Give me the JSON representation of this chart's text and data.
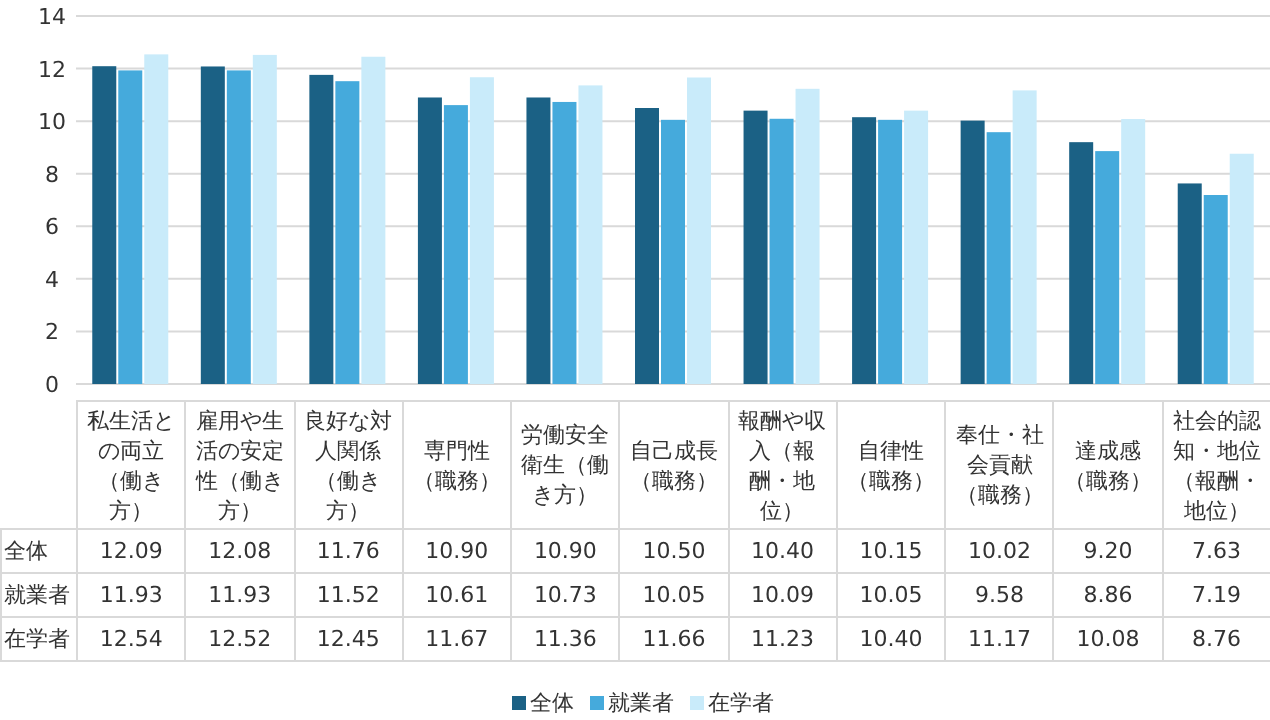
{
  "chart_data": {
    "type": "bar",
    "categories": [
      "私生活との両立（働き方）",
      "雇用や生活の安定性（働き方）",
      "良好な対人関係（働き方）",
      "専門性（職務）",
      "労働安全衛生（働き方）",
      "自己成長（職務）",
      "報酬や収入（報酬・地位）",
      "自律性（職務）",
      "奉仕・社会貢献（職務）",
      "達成感（職務）",
      "社会的認知・地位（報酬・地位）"
    ],
    "series": [
      {
        "name": "全体",
        "color": "#1b6185",
        "values": [
          12.09,
          12.08,
          11.76,
          10.9,
          10.9,
          10.5,
          10.4,
          10.15,
          10.02,
          9.2,
          7.63
        ],
        "value_labels": [
          "12.09",
          "12.08",
          "11.76",
          "10.90",
          "10.90",
          "10.50",
          "10.40",
          "10.15",
          "10.02",
          "9.20",
          "7.63"
        ]
      },
      {
        "name": "就業者",
        "color": "#45aadc",
        "values": [
          11.93,
          11.93,
          11.52,
          10.61,
          10.73,
          10.05,
          10.09,
          10.05,
          9.58,
          8.86,
          7.19
        ],
        "value_labels": [
          "11.93",
          "11.93",
          "11.52",
          "10.61",
          "10.73",
          "10.05",
          "10.09",
          "10.05",
          "9.58",
          "8.86",
          "7.19"
        ]
      },
      {
        "name": "在学者",
        "color": "#c9ebfa",
        "values": [
          12.54,
          12.52,
          12.45,
          11.67,
          11.36,
          11.66,
          11.23,
          10.4,
          11.17,
          10.08,
          8.76
        ],
        "value_labels": [
          "12.54",
          "12.52",
          "12.45",
          "11.67",
          "11.36",
          "11.66",
          "11.23",
          "10.40",
          "11.17",
          "10.08",
          "8.76"
        ]
      }
    ],
    "ylim": [
      0,
      14
    ],
    "yticks": [
      0,
      2,
      4,
      6,
      8,
      10,
      12,
      14
    ],
    "grid": "y",
    "legend": "bottom"
  }
}
